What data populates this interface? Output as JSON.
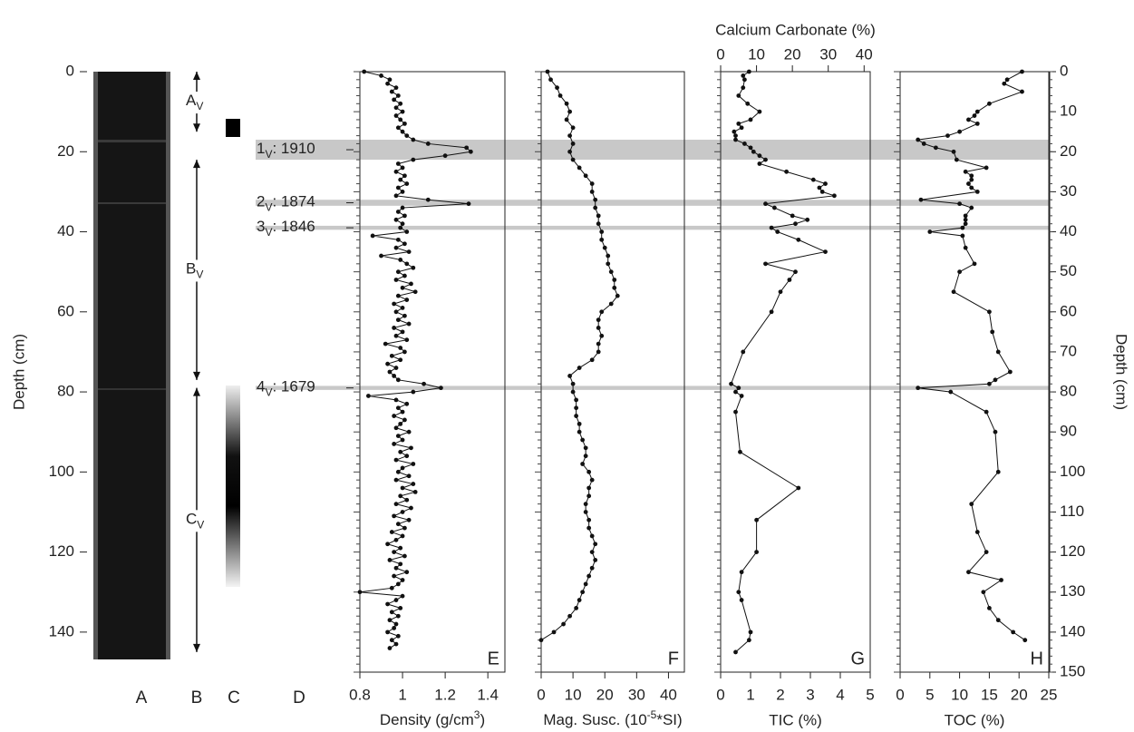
{
  "chart_data": {
    "type": "depth-profiles",
    "ylabel": "Depth (cm)",
    "ylim": [
      0,
      150
    ],
    "yticks_left": [
      0,
      20,
      40,
      60,
      80,
      100,
      120,
      140
    ],
    "yticks_right": [
      0,
      10,
      20,
      30,
      40,
      50,
      60,
      70,
      80,
      90,
      100,
      110,
      120,
      130,
      140,
      150
    ],
    "column_labels": [
      "A",
      "B",
      "C",
      "D"
    ],
    "units": [
      {
        "name": "A",
        "sub": "V",
        "top": 0,
        "bottom": 15
      },
      {
        "name": "B",
        "sub": "V",
        "top": 22,
        "bottom": 77
      },
      {
        "name": "C",
        "sub": "V",
        "top": 79,
        "bottom": 145
      }
    ],
    "events": [
      {
        "num": "1",
        "sub": "V",
        "label": ": 1910",
        "top": 17,
        "bottom": 22
      },
      {
        "num": "2",
        "sub": "V",
        "label": ": 1874",
        "top": 32,
        "bottom": 33.5
      },
      {
        "num": "3",
        "sub": "V",
        "label": ": 1846",
        "top": 38.5,
        "bottom": 39.5
      },
      {
        "num": "4",
        "sub": "V",
        "label": ": 1679",
        "top": 78.5,
        "bottom": 79.5
      }
    ],
    "event_color": "#c8c8c8",
    "color": "#111111",
    "panels": [
      {
        "letter": "E",
        "xlabel": {
          "text": "Density (g/cm",
          "sup": "3",
          "end": ")"
        },
        "xlim": [
          0.8,
          1.48
        ],
        "xticks": [
          0.8,
          1,
          1.2,
          1.4
        ],
        "y": [
          0,
          1,
          2,
          3,
          4,
          5,
          6,
          7,
          8,
          9,
          10,
          11,
          12,
          13,
          14,
          15,
          16,
          17,
          18,
          19,
          20,
          21,
          22,
          23,
          24,
          25,
          26,
          27,
          28,
          29,
          30,
          31,
          32,
          33,
          34,
          35,
          36,
          37,
          38,
          39,
          40,
          41,
          42,
          43,
          44,
          45,
          46,
          47,
          48,
          49,
          50,
          51,
          52,
          53,
          54,
          55,
          56,
          57,
          58,
          59,
          60,
          61,
          62,
          63,
          64,
          65,
          66,
          67,
          68,
          69,
          70,
          71,
          72,
          73,
          74,
          75,
          76,
          77,
          78,
          79,
          80,
          81,
          82,
          83,
          84,
          85,
          86,
          87,
          88,
          89,
          90,
          91,
          92,
          93,
          94,
          95,
          96,
          97,
          98,
          99,
          100,
          101,
          102,
          103,
          104,
          105,
          106,
          107,
          108,
          109,
          110,
          111,
          112,
          113,
          114,
          115,
          116,
          117,
          118,
          119,
          120,
          121,
          122,
          123,
          124,
          125,
          126,
          127,
          128,
          129,
          130,
          131,
          132,
          133,
          134,
          135,
          136,
          137,
          138,
          139,
          140,
          141,
          142,
          143,
          144
        ],
        "values": [
          0.82,
          0.9,
          0.94,
          0.93,
          0.97,
          0.95,
          0.98,
          0.96,
          0.99,
          0.97,
          1.0,
          0.97,
          0.99,
          1.01,
          0.98,
          1.0,
          1.02,
          1.05,
          1.12,
          1.3,
          1.32,
          1.2,
          1.05,
          0.98,
          1.0,
          0.97,
          1.01,
          0.99,
          1.02,
          0.98,
          1.0,
          0.97,
          1.12,
          1.31,
          1.0,
          0.98,
          1.01,
          0.97,
          1.0,
          0.99,
          1.02,
          0.86,
          0.98,
          1.01,
          0.97,
          1.03,
          0.9,
          0.99,
          1.02,
          1.05,
          0.98,
          1.01,
          0.97,
          1.04,
          1.0,
          1.06,
          0.98,
          1.02,
          0.96,
          1.0,
          0.97,
          1.01,
          0.98,
          1.03,
          0.96,
          1.0,
          0.97,
          1.02,
          0.92,
          0.99,
          1.01,
          0.95,
          0.99,
          0.93,
          0.97,
          0.94,
          0.96,
          0.98,
          1.1,
          1.18,
          1.05,
          0.84,
          0.97,
          1.02,
          0.98,
          1.0,
          0.96,
          1.01,
          0.99,
          0.97,
          1.03,
          0.98,
          1.0,
          0.96,
          1.04,
          0.99,
          1.02,
          0.97,
          1.05,
          1.0,
          0.98,
          1.03,
          0.97,
          1.05,
          1.0,
          1.06,
          0.99,
          1.02,
          0.97,
          1.04,
          1.0,
          0.96,
          1.03,
          0.98,
          1.01,
          0.95,
          1.0,
          0.97,
          0.93,
          0.99,
          0.96,
          1.01,
          0.94,
          0.99,
          0.97,
          1.02,
          0.96,
          1.0,
          0.98,
          0.95,
          0.8,
          1.0,
          0.97,
          0.93,
          0.99,
          0.95,
          0.98,
          0.94,
          0.97,
          0.96,
          0.93,
          0.98,
          0.95,
          0.97,
          0.94
        ]
      },
      {
        "letter": "F",
        "xlabel": {
          "text": "Mag. Susc. (10",
          "sup": "-5",
          "end": "*SI)"
        },
        "xlim": [
          0,
          45
        ],
        "xticks": [
          0,
          10,
          20,
          30,
          40
        ],
        "y": [
          0,
          2,
          4,
          6,
          8,
          10,
          12,
          14,
          16,
          18,
          20,
          22,
          24,
          26,
          28,
          30,
          32,
          34,
          36,
          38,
          40,
          42,
          44,
          46,
          48,
          50,
          52,
          54,
          56,
          58,
          60,
          62,
          64,
          66,
          68,
          70,
          72,
          74,
          76,
          78,
          80,
          82,
          84,
          86,
          88,
          90,
          92,
          94,
          96,
          98,
          100,
          102,
          104,
          106,
          108,
          110,
          112,
          114,
          116,
          118,
          120,
          122,
          124,
          126,
          128,
          130,
          132,
          134,
          136,
          138,
          140,
          142
        ],
        "values": [
          2,
          3,
          5,
          6,
          8,
          9,
          8,
          10,
          9,
          10,
          9,
          10,
          12,
          14,
          16,
          16,
          17,
          17,
          18,
          18,
          19,
          19,
          20,
          21,
          21,
          22,
          23,
          23,
          24,
          22,
          19,
          18,
          18,
          19,
          18,
          18,
          16,
          12,
          9,
          10,
          10,
          11,
          11,
          11,
          12,
          12,
          13,
          14,
          14,
          13,
          15,
          16,
          15,
          15,
          14,
          14,
          15,
          15,
          16,
          17,
          16,
          17,
          16,
          15,
          14,
          13,
          12,
          11,
          9,
          7,
          4,
          0
        ]
      },
      {
        "letter": "G",
        "xlabel": "TIC (%)",
        "xlim": [
          0,
          5
        ],
        "xticks": [
          0,
          1,
          2,
          3,
          4,
          5
        ],
        "x2label": "Calcium Carbonate (%)",
        "x2lim": [
          0,
          41.7
        ],
        "x2ticks": [
          0,
          10,
          20,
          30,
          40
        ],
        "y": [
          0,
          1,
          2,
          4,
          6,
          8,
          10,
          12,
          13,
          14,
          15,
          16,
          17,
          18,
          19,
          20,
          21,
          22,
          23,
          25,
          27,
          28,
          29,
          30,
          31,
          33,
          34,
          36,
          37,
          38,
          39,
          40,
          42,
          45,
          48,
          50,
          52,
          55,
          60,
          70,
          78,
          79,
          80,
          81,
          85,
          95,
          104,
          112,
          120,
          125,
          130,
          132,
          140,
          142,
          145
        ],
        "values": [
          0.95,
          0.75,
          0.8,
          0.75,
          0.6,
          0.9,
          1.3,
          1.0,
          0.6,
          0.7,
          0.45,
          0.5,
          0.5,
          0.8,
          1.0,
          1.1,
          1.3,
          1.5,
          1.3,
          2.2,
          3.1,
          3.5,
          3.3,
          3.4,
          3.8,
          1.5,
          1.8,
          2.4,
          2.9,
          2.5,
          1.7,
          1.9,
          2.6,
          3.5,
          1.5,
          2.5,
          2.3,
          2.0,
          1.7,
          0.75,
          0.35,
          0.6,
          0.5,
          0.7,
          0.5,
          0.65,
          2.6,
          1.2,
          1.2,
          0.7,
          0.6,
          0.7,
          1.0,
          0.95,
          0.5
        ]
      },
      {
        "letter": "H",
        "xlabel": "TOC (%)",
        "xlim": [
          0,
          25
        ],
        "xticks": [
          0,
          5,
          10,
          15,
          20,
          25
        ],
        "y": [
          0,
          2,
          3,
          5,
          8,
          10,
          11,
          12,
          13,
          15,
          16,
          17,
          18,
          19,
          20,
          22,
          24,
          25,
          26,
          27,
          28,
          29,
          30,
          32,
          33,
          34,
          36,
          37,
          38,
          39,
          40,
          41,
          44,
          48,
          50,
          55,
          60,
          65,
          70,
          75,
          77,
          78,
          79,
          80,
          85,
          90,
          100,
          108,
          115,
          120,
          125,
          127,
          130,
          134,
          137,
          140,
          142
        ],
        "values": [
          20.5,
          18,
          17.5,
          20.5,
          15,
          13,
          12.5,
          11.5,
          13,
          10,
          8,
          3,
          4,
          6,
          9,
          9.5,
          14.5,
          11,
          12,
          12,
          11.5,
          12,
          13,
          3.5,
          10,
          12,
          11,
          11,
          11,
          10.5,
          5,
          10.5,
          11,
          12.5,
          10,
          9,
          15,
          15.5,
          16.5,
          18.5,
          16,
          15,
          3,
          8.5,
          14.5,
          16,
          16.5,
          12,
          13,
          14.5,
          11.5,
          17,
          14,
          15,
          16.5,
          19,
          21
        ]
      }
    ]
  }
}
